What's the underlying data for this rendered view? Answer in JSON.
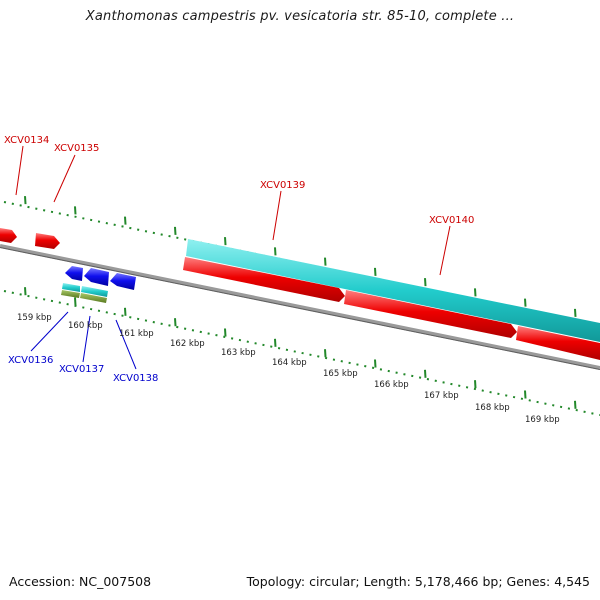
{
  "title": "Xanthomonas campestris pv. vesicatoria str. 85-10, complete ...",
  "accession_text": "Accession: NC_007508",
  "topology_text": "Topology: circular; Length: 5,178,466 bp; Genes: 4,545",
  "colors": {
    "forward_gene": "#ee0000",
    "reverse_gene": "#1010ee",
    "cds": "#22cccc",
    "rna": "#6a9a2a",
    "ticks": "#22882a",
    "backbone": "#808080",
    "forward_label": "#cc0000",
    "reverse_label": "#0000cc"
  },
  "ruler": [
    "159 kbp",
    "160 kbp",
    "161 kbp",
    "162 kbp",
    "163 kbp",
    "164 kbp",
    "165 kbp",
    "166 kbp",
    "167 kbp",
    "168 kbp",
    "169 kbp"
  ],
  "genes_forward": [
    "XCV0134",
    "XCV0135",
    "XCV0139",
    "XCV0140"
  ],
  "genes_reverse": [
    "XCV0136",
    "XCV0137",
    "XCV0138"
  ]
}
